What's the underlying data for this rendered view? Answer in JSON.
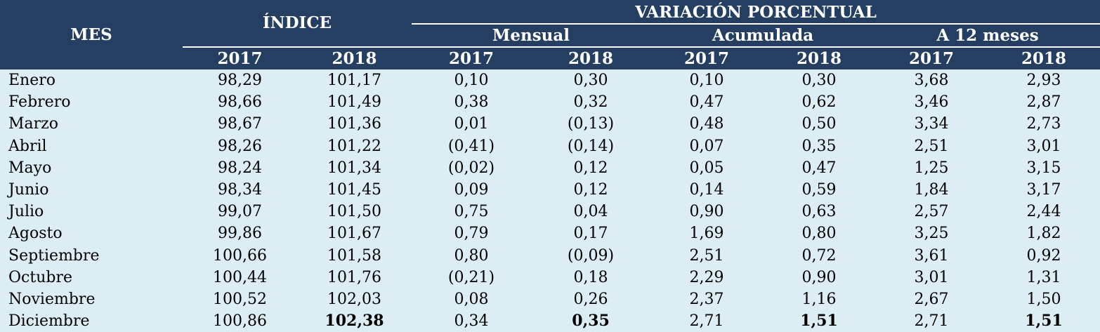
{
  "header": {
    "mes": "MES",
    "indice": "ÍNDICE",
    "variacion": "VARIACIÓN PORCENTUAL",
    "mensual": "Mensual",
    "acumulada": "Acumulada",
    "a12": "A 12 meses",
    "years": [
      "2017",
      "2018",
      "2017",
      "2018",
      "2017",
      "2018",
      "2017",
      "2018"
    ]
  },
  "rows": [
    {
      "mes": "Enero",
      "v": [
        "98,29",
        "101,17",
        "0,10",
        "0,30",
        "0,10",
        "0,30",
        "3,68",
        "2,93"
      ]
    },
    {
      "mes": "Febrero",
      "v": [
        "98,66",
        "101,49",
        "0,38",
        "0,32",
        "0,47",
        "0,62",
        "3,46",
        "2,87"
      ]
    },
    {
      "mes": "Marzo",
      "v": [
        "98,67",
        "101,36",
        "0,01",
        "(0,13)",
        "0,48",
        "0,50",
        "3,34",
        "2,73"
      ]
    },
    {
      "mes": "Abril",
      "v": [
        "98,26",
        "101,22",
        "(0,41)",
        "(0,14)",
        "0,07",
        "0,35",
        "2,51",
        "3,01"
      ]
    },
    {
      "mes": "Mayo",
      "v": [
        "98,24",
        "101,34",
        "(0,02)",
        "0,12",
        "0,05",
        "0,47",
        "1,25",
        "3,15"
      ]
    },
    {
      "mes": "Junio",
      "v": [
        "98,34",
        "101,45",
        "0,09",
        "0,12",
        "0,14",
        "0,59",
        "1,84",
        "3,17"
      ]
    },
    {
      "mes": "Julio",
      "v": [
        "99,07",
        "101,50",
        "0,75",
        "0,04",
        "0,90",
        "0,63",
        "2,57",
        "2,44"
      ]
    },
    {
      "mes": "Agosto",
      "v": [
        "99,86",
        "101,67",
        "0,79",
        "0,17",
        "1,69",
        "0,80",
        "3,25",
        "1,82"
      ]
    },
    {
      "mes": "Septiembre",
      "v": [
        "100,66",
        "101,58",
        "0,80",
        "(0,09)",
        "2,51",
        "0,72",
        "3,61",
        "0,92"
      ]
    },
    {
      "mes": "Octubre",
      "v": [
        "100,44",
        "101,76",
        "(0,21)",
        "0,18",
        "2,29",
        "0,90",
        "3,01",
        "1,31"
      ]
    },
    {
      "mes": "Noviembre",
      "v": [
        "100,52",
        "102,03",
        "0,08",
        "0,26",
        "2,37",
        "1,16",
        "2,67",
        "1,50"
      ]
    },
    {
      "mes": "Diciembre",
      "v": [
        "100,86",
        "102,38",
        "0,34",
        "0,35",
        "2,71",
        "1,51",
        "2,71",
        "1,51"
      ],
      "bold": [
        false,
        true,
        false,
        true,
        false,
        true,
        false,
        true
      ]
    }
  ]
}
